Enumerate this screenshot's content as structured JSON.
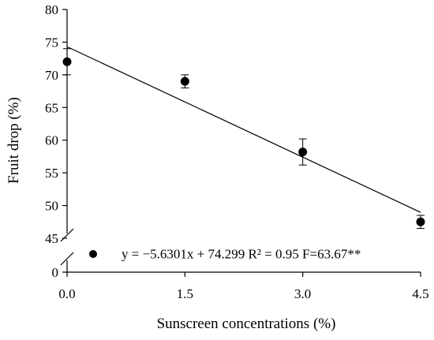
{
  "chart_data": {
    "type": "scatter",
    "title": "",
    "xlabel": "Sunscreen concentrations (%)",
    "ylabel": "Fruit drop (%)",
    "x_ticks": [
      "0.0",
      "1.5",
      "3.0",
      "4.5"
    ],
    "x_tick_values": [
      0,
      1.5,
      3.0,
      4.5
    ],
    "y_ticks": [
      "45",
      "50",
      "55",
      "60",
      "65",
      "70",
      "75",
      "80"
    ],
    "y_tick_values": [
      45,
      50,
      55,
      60,
      65,
      70,
      75,
      80
    ],
    "y_zero_tick": "0",
    "xlim": [
      0,
      4.5
    ],
    "ylim": [
      45,
      80
    ],
    "y_axis_break": true,
    "grid": false,
    "series": [
      {
        "x": [
          0,
          1.5,
          3.0,
          4.5
        ],
        "y": [
          72.0,
          69.0,
          58.2,
          47.5
        ],
        "error": [
          2.0,
          1.0,
          2.0,
          1.0
        ],
        "marker": "filled-circle"
      }
    ],
    "regression": {
      "slope": -5.6301,
      "intercept": 74.299
    },
    "legend_text": "y = −5.6301x + 74.299  R² = 0.95 F=63.67**",
    "legend_placement": "bottom-inside"
  }
}
